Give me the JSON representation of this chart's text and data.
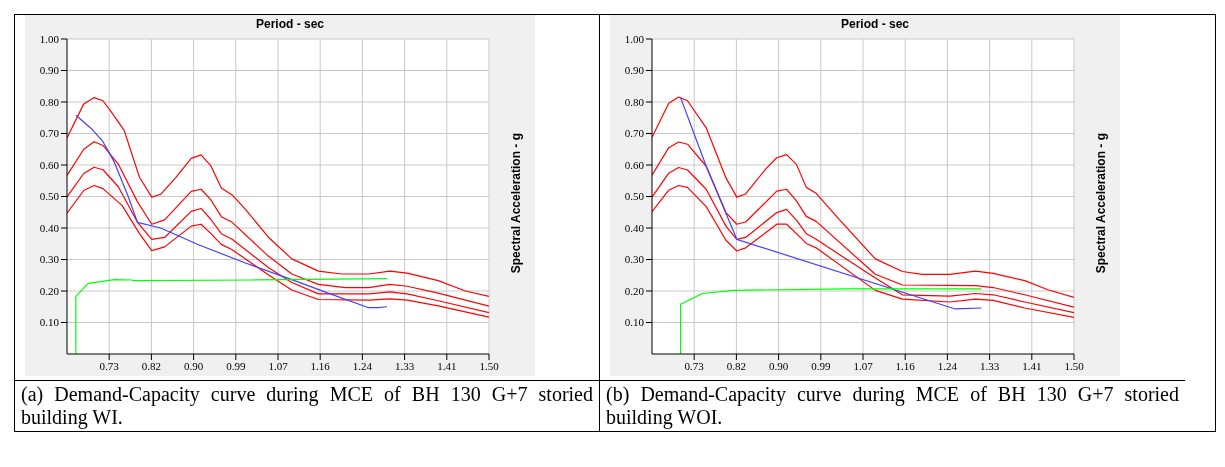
{
  "chart_data": [
    {
      "type": "line",
      "xlabel": "Period - sec",
      "ylabel": "Spectral Acceleration - g",
      "annotations": [
        "(a) Demand-Capacity curve during MCE of BH 130 G+7 storied building WI."
      ],
      "grid": true,
      "legend": false,
      "marker": "none",
      "line_style": "solid",
      "xlim": [
        0.644,
        1.5
      ],
      "xticks": [
        {
          "value": 0.7296,
          "label": "0.73"
        },
        {
          "value": 0.8152,
          "label": "0.82"
        },
        {
          "value": 0.9008,
          "label": "0.90"
        },
        {
          "value": 0.9864,
          "label": "0.99"
        },
        {
          "value": 1.072,
          "label": "1.07"
        },
        {
          "value": 1.1576,
          "label": "1.16"
        },
        {
          "value": 1.2432,
          "label": "1.24"
        },
        {
          "value": 1.3288,
          "label": "1.33"
        },
        {
          "value": 1.4144,
          "label": "1.41"
        },
        {
          "value": 1.5,
          "label": "1.50"
        }
      ],
      "ylim": [
        0,
        1
      ],
      "yticks": [
        {
          "value": 0.1,
          "label": "0.10"
        },
        {
          "value": 0.2,
          "label": "0.20"
        },
        {
          "value": 0.3,
          "label": "0.30"
        },
        {
          "value": 0.4,
          "label": "0.40"
        },
        {
          "value": 0.5,
          "label": "0.50"
        },
        {
          "value": 0.6,
          "label": "0.60"
        },
        {
          "value": 0.7,
          "label": "0.70"
        },
        {
          "value": 0.8,
          "label": "0.80"
        },
        {
          "value": 0.9,
          "label": "0.90"
        },
        {
          "value": 1.0,
          "label": "1.00"
        }
      ],
      "series": [
        {
          "color": "#ff0000",
          "x": [
            0.644,
            0.678,
            0.699,
            0.717,
            0.736,
            0.76,
            0.791,
            0.816,
            0.834,
            0.865,
            0.896,
            0.916,
            0.936,
            0.957,
            0.979,
            1.006,
            1.053,
            1.1,
            1.154,
            1.201,
            1.256,
            1.299,
            1.334,
            1.397,
            1.452,
            1.5
          ],
          "values": [
            0.686,
            0.794,
            0.814,
            0.804,
            0.764,
            0.71,
            0.561,
            0.498,
            0.507,
            0.561,
            0.621,
            0.632,
            0.597,
            0.527,
            0.505,
            0.459,
            0.37,
            0.302,
            0.263,
            0.254,
            0.254,
            0.263,
            0.257,
            0.233,
            0.2,
            0.183
          ]
        },
        {
          "color": "#ff0000",
          "x": [
            0.644,
            0.678,
            0.699,
            0.717,
            0.748,
            0.787,
            0.816,
            0.842,
            0.896,
            0.916,
            0.936,
            0.957,
            0.979,
            1.053,
            1.1,
            1.154,
            1.209,
            1.256,
            1.299,
            1.334,
            1.397,
            1.5
          ],
          "values": [
            0.567,
            0.65,
            0.674,
            0.662,
            0.603,
            0.483,
            0.412,
            0.426,
            0.516,
            0.523,
            0.489,
            0.436,
            0.418,
            0.31,
            0.254,
            0.221,
            0.211,
            0.211,
            0.221,
            0.215,
            0.193,
            0.152
          ]
        },
        {
          "color": "#ff0000",
          "x": [
            0.644,
            0.678,
            0.699,
            0.717,
            0.748,
            0.787,
            0.816,
            0.842,
            0.896,
            0.916,
            0.936,
            0.957,
            0.979,
            1.053,
            1.1,
            1.154,
            1.256,
            1.299,
            1.334,
            1.397,
            1.5
          ],
          "values": [
            0.499,
            0.573,
            0.593,
            0.585,
            0.531,
            0.418,
            0.364,
            0.37,
            0.453,
            0.462,
            0.427,
            0.382,
            0.364,
            0.274,
            0.227,
            0.191,
            0.191,
            0.197,
            0.191,
            0.169,
            0.131
          ]
        },
        {
          "color": "#ff0000",
          "x": [
            0.644,
            0.678,
            0.699,
            0.717,
            0.756,
            0.791,
            0.816,
            0.842,
            0.896,
            0.916,
            0.936,
            0.957,
            0.979,
            1.053,
            1.1,
            1.154,
            1.256,
            1.299,
            1.334,
            1.397,
            1.5
          ],
          "values": [
            0.447,
            0.519,
            0.535,
            0.525,
            0.471,
            0.382,
            0.328,
            0.34,
            0.406,
            0.412,
            0.382,
            0.348,
            0.331,
            0.251,
            0.203,
            0.173,
            0.171,
            0.175,
            0.171,
            0.153,
            0.117
          ]
        },
        {
          "color": "#4040ff",
          "x": [
            0.662,
            0.693,
            0.717,
            0.74,
            0.768,
            0.787,
            0.834,
            0.912,
            1.006,
            1.1,
            1.178,
            1.256,
            1.276,
            1.293
          ],
          "values": [
            0.758,
            0.716,
            0.674,
            0.609,
            0.501,
            0.418,
            0.4,
            0.346,
            0.289,
            0.236,
            0.191,
            0.147,
            0.147,
            0.15
          ]
        },
        {
          "color": "#00ff00",
          "x": [
            0.662,
            0.662,
            0.687,
            0.74,
            0.775,
            0.779,
            1.022,
            1.293
          ],
          "values": [
            0,
            0.183,
            0.224,
            0.236,
            0.235,
            0.233,
            0.235,
            0.239
          ]
        }
      ]
    },
    {
      "type": "line",
      "xlabel": "Period - sec",
      "ylabel": "Spectral Acceleration - g",
      "annotations": [
        "(b) Demand-Capacity curve during MCE of BH 130 G+7 storied building WOI."
      ],
      "grid": true,
      "legend": false,
      "marker": "none",
      "line_style": "solid",
      "xlim": [
        0.644,
        1.5
      ],
      "xticks": [
        {
          "value": 0.7296,
          "label": "0.73"
        },
        {
          "value": 0.8152,
          "label": "0.82"
        },
        {
          "value": 0.9008,
          "label": "0.90"
        },
        {
          "value": 0.9864,
          "label": "0.99"
        },
        {
          "value": 1.072,
          "label": "1.07"
        },
        {
          "value": 1.1576,
          "label": "1.16"
        },
        {
          "value": 1.2432,
          "label": "1.24"
        },
        {
          "value": 1.3288,
          "label": "1.33"
        },
        {
          "value": 1.4144,
          "label": "1.41"
        },
        {
          "value": 1.5,
          "label": "1.50"
        }
      ],
      "ylim": [
        0,
        1
      ],
      "yticks": [
        {
          "value": 0.1,
          "label": "0.10"
        },
        {
          "value": 0.2,
          "label": "0.20"
        },
        {
          "value": 0.3,
          "label": "0.30"
        },
        {
          "value": 0.4,
          "label": "0.40"
        },
        {
          "value": 0.5,
          "label": "0.50"
        },
        {
          "value": 0.6,
          "label": "0.60"
        },
        {
          "value": 0.7,
          "label": "0.70"
        },
        {
          "value": 0.8,
          "label": "0.80"
        },
        {
          "value": 0.9,
          "label": "0.90"
        },
        {
          "value": 1.0,
          "label": "1.00"
        }
      ],
      "series": [
        {
          "color": "#ff0000",
          "x": [
            0.644,
            0.678,
            0.698,
            0.716,
            0.754,
            0.794,
            0.816,
            0.834,
            0.874,
            0.897,
            0.917,
            0.937,
            0.957,
            0.977,
            1.025,
            1.097,
            1.152,
            1.192,
            1.248,
            1.3,
            1.336,
            1.4,
            1.447,
            1.5
          ],
          "values": [
            0.688,
            0.796,
            0.816,
            0.804,
            0.718,
            0.559,
            0.498,
            0.508,
            0.586,
            0.623,
            0.633,
            0.602,
            0.529,
            0.51,
            0.425,
            0.302,
            0.262,
            0.253,
            0.253,
            0.263,
            0.256,
            0.233,
            0.204,
            0.18
          ]
        },
        {
          "color": "#ff0000",
          "x": [
            0.644,
            0.678,
            0.698,
            0.716,
            0.754,
            0.794,
            0.816,
            0.834,
            0.897,
            0.917,
            0.937,
            0.957,
            0.977,
            1.097,
            1.152,
            1.248,
            1.3,
            1.336,
            1.4,
            1.5
          ],
          "values": [
            0.568,
            0.655,
            0.673,
            0.666,
            0.596,
            0.449,
            0.412,
            0.419,
            0.517,
            0.523,
            0.486,
            0.437,
            0.421,
            0.253,
            0.219,
            null,
            0.217,
            0.211,
            0.188,
            0.149
          ]
        },
        {
          "color": "#ff0000",
          "x": [
            0.644,
            0.678,
            0.698,
            0.716,
            0.754,
            0.794,
            0.816,
            0.834,
            0.897,
            0.917,
            0.937,
            0.957,
            0.977,
            1.097,
            1.152,
            1.248,
            1.3,
            1.336,
            1.4,
            1.5
          ],
          "values": [
            0.498,
            0.574,
            0.592,
            0.584,
            0.523,
            0.406,
            0.364,
            0.37,
            0.449,
            0.459,
            0.425,
            0.382,
            0.364,
            0.241,
            0.188,
            0.184,
            0.192,
            0.188,
            0.165,
            0.131
          ]
        },
        {
          "color": "#ff0000",
          "x": [
            0.644,
            0.678,
            0.698,
            0.716,
            0.754,
            0.794,
            0.816,
            0.834,
            0.897,
            0.917,
            0.937,
            0.957,
            0.977,
            1.097,
            1.152,
            1.248,
            1.3,
            1.336,
            1.4,
            1.5
          ],
          "values": [
            0.452,
            0.52,
            0.535,
            0.529,
            0.468,
            0.361,
            0.327,
            0.337,
            0.412,
            0.412,
            0.382,
            0.351,
            0.337,
            0.202,
            0.174,
            0.165,
            0.174,
            0.17,
            0.146,
            0.116
          ]
        },
        {
          "color": "#4040ff",
          "x": [
            0.702,
            0.754,
            0.816,
            1.259,
            1.312
          ],
          "values": [
            0.814,
            0.596,
            0.364,
            0.143,
            0.146
          ]
        },
        {
          "color": "#00ff00",
          "x": [
            0.702,
            0.702,
            0.746,
            0.81,
            1.041,
            1.312
          ],
          "values": [
            0,
            0.158,
            0.192,
            0.202,
            0.207,
            0.207
          ]
        }
      ]
    }
  ]
}
